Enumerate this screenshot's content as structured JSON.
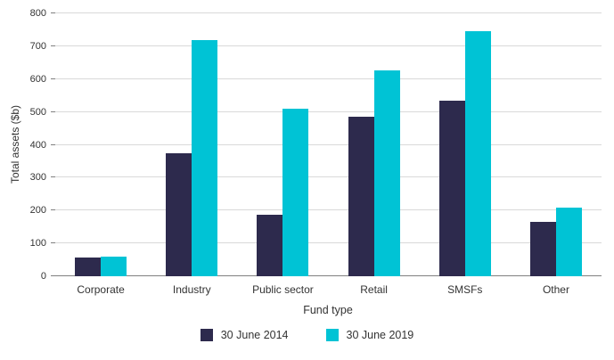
{
  "chart_data": {
    "type": "bar",
    "title": "",
    "xlabel": "Fund type",
    "ylabel": "Total assets ($b)",
    "categories": [
      "Corporate",
      "Industry",
      "Public sector",
      "Retail",
      "SMSFs",
      "Other"
    ],
    "series": [
      {
        "name": "30 June 2014",
        "color": "#2d2a4d",
        "values": [
          56,
          375,
          186,
          486,
          533,
          166
        ]
      },
      {
        "name": "30 June 2019",
        "color": "#00c3d5",
        "values": [
          59,
          718,
          510,
          626,
          747,
          209
        ]
      }
    ],
    "ylim": [
      0,
      800
    ],
    "ytick_step": 100,
    "grid": true,
    "legend_position": "bottom"
  }
}
